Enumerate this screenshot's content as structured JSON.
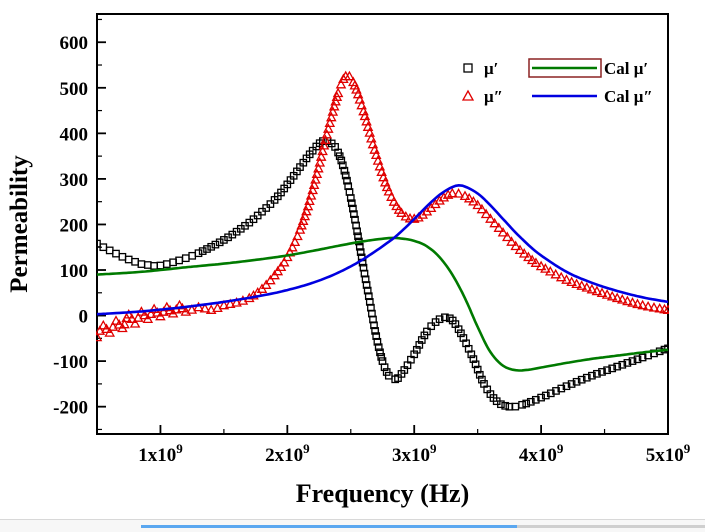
{
  "chart_data": {
    "type": "line+scatter",
    "title": "",
    "xlabel": "Frequency (Hz)",
    "ylabel": "Permeability",
    "xlim": [
      0.5,
      5.0
    ],
    "ylim": [
      -260,
      662
    ],
    "x_unit": "GHz (labels shown as n x 10^9 Hz)",
    "grid": false,
    "legend_position": "top-right-inside",
    "x_ticks": [
      {
        "v": 1,
        "label": "1x10",
        "sup": "9"
      },
      {
        "v": 2,
        "label": "2x10",
        "sup": "9"
      },
      {
        "v": 3,
        "label": "3x10",
        "sup": "9"
      },
      {
        "v": 4,
        "label": "4x10",
        "sup": "9"
      },
      {
        "v": 5,
        "label": "5x10",
        "sup": "9"
      }
    ],
    "x_minor": [
      0.5,
      1.5,
      2.5,
      3.5,
      4.5
    ],
    "y_ticks": [
      -200,
      -100,
      0,
      100,
      200,
      300,
      400,
      500,
      600
    ],
    "y_minor": [
      -250,
      -150,
      -50,
      50,
      150,
      250,
      350,
      450,
      550,
      650
    ],
    "series": [
      {
        "name": "mu-prime-measured",
        "legend": "μ′",
        "kind": "scatter",
        "marker": "square",
        "color": "#000000",
        "points": [
          [
            0.5,
            158
          ],
          [
            0.55,
            150
          ],
          [
            0.6,
            143
          ],
          [
            0.65,
            136
          ],
          [
            0.7,
            129
          ],
          [
            0.75,
            123
          ],
          [
            0.8,
            118
          ],
          [
            0.85,
            113
          ],
          [
            0.9,
            111
          ],
          [
            0.95,
            109
          ],
          [
            1.0,
            110
          ],
          [
            1.05,
            113
          ],
          [
            1.1,
            117
          ],
          [
            1.2,
            126
          ],
          [
            1.3,
            137
          ],
          [
            1.4,
            151
          ],
          [
            1.5,
            166
          ],
          [
            1.6,
            184
          ],
          [
            1.7,
            204
          ],
          [
            1.8,
            228
          ],
          [
            1.9,
            254
          ],
          [
            2.0,
            288
          ],
          [
            2.1,
            326
          ],
          [
            2.2,
            362
          ],
          [
            2.28,
            383
          ],
          [
            2.35,
            378
          ],
          [
            2.4,
            358
          ],
          [
            2.45,
            318
          ],
          [
            2.5,
            258
          ],
          [
            2.55,
            185
          ],
          [
            2.6,
            105
          ],
          [
            2.65,
            30
          ],
          [
            2.7,
            -45
          ],
          [
            2.75,
            -100
          ],
          [
            2.8,
            -132
          ],
          [
            2.85,
            -140
          ],
          [
            2.9,
            -128
          ],
          [
            3.0,
            -85
          ],
          [
            3.1,
            -35
          ],
          [
            3.2,
            -8
          ],
          [
            3.28,
            -6
          ],
          [
            3.35,
            -30
          ],
          [
            3.45,
            -85
          ],
          [
            3.55,
            -150
          ],
          [
            3.65,
            -188
          ],
          [
            3.75,
            -200
          ],
          [
            3.85,
            -196
          ],
          [
            4.0,
            -180
          ],
          [
            4.2,
            -155
          ],
          [
            4.4,
            -132
          ],
          [
            4.6,
            -112
          ],
          [
            4.8,
            -92
          ],
          [
            5.0,
            -72
          ]
        ]
      },
      {
        "name": "mu-doubleprime-measured",
        "legend": "μ″",
        "kind": "scatter",
        "marker": "triangle",
        "color": "#e00000",
        "points": [
          [
            0.5,
            -48
          ],
          [
            0.55,
            -22
          ],
          [
            0.6,
            -38
          ],
          [
            0.65,
            -12
          ],
          [
            0.7,
            -28
          ],
          [
            0.75,
            2
          ],
          [
            0.8,
            -18
          ],
          [
            0.85,
            8
          ],
          [
            0.9,
            -8
          ],
          [
            0.95,
            14
          ],
          [
            1.0,
            -2
          ],
          [
            1.05,
            18
          ],
          [
            1.1,
            4
          ],
          [
            1.15,
            22
          ],
          [
            1.2,
            8
          ],
          [
            1.3,
            18
          ],
          [
            1.4,
            12
          ],
          [
            1.5,
            22
          ],
          [
            1.6,
            28
          ],
          [
            1.7,
            38
          ],
          [
            1.8,
            58
          ],
          [
            1.9,
            88
          ],
          [
            2.0,
            128
          ],
          [
            2.1,
            188
          ],
          [
            2.2,
            275
          ],
          [
            2.3,
            385
          ],
          [
            2.4,
            488
          ],
          [
            2.46,
            525
          ],
          [
            2.52,
            512
          ],
          [
            2.6,
            448
          ],
          [
            2.7,
            352
          ],
          [
            2.8,
            272
          ],
          [
            2.9,
            225
          ],
          [
            3.0,
            212
          ],
          [
            3.1,
            228
          ],
          [
            3.2,
            252
          ],
          [
            3.3,
            268
          ],
          [
            3.4,
            262
          ],
          [
            3.5,
            242
          ],
          [
            3.6,
            212
          ],
          [
            3.7,
            182
          ],
          [
            3.8,
            152
          ],
          [
            3.9,
            128
          ],
          [
            4.0,
            108
          ],
          [
            4.2,
            78
          ],
          [
            4.4,
            57
          ],
          [
            4.6,
            38
          ],
          [
            4.8,
            22
          ],
          [
            5.0,
            12
          ]
        ]
      },
      {
        "name": "cal-mu-prime",
        "legend": "Cal μ′",
        "kind": "line",
        "color": "#007a00",
        "legend_box": true,
        "legend_box_color": "#8b2222",
        "points": [
          [
            0.5,
            90
          ],
          [
            0.8,
            95
          ],
          [
            1.0,
            100
          ],
          [
            1.2,
            106
          ],
          [
            1.5,
            114
          ],
          [
            1.8,
            124
          ],
          [
            2.0,
            132
          ],
          [
            2.2,
            142
          ],
          [
            2.4,
            153
          ],
          [
            2.6,
            163
          ],
          [
            2.8,
            170
          ],
          [
            2.9,
            169
          ],
          [
            3.0,
            164
          ],
          [
            3.1,
            152
          ],
          [
            3.2,
            128
          ],
          [
            3.3,
            90
          ],
          [
            3.4,
            38
          ],
          [
            3.5,
            -25
          ],
          [
            3.6,
            -80
          ],
          [
            3.7,
            -110
          ],
          [
            3.8,
            -120
          ],
          [
            3.9,
            -119
          ],
          [
            4.0,
            -114
          ],
          [
            4.2,
            -104
          ],
          [
            4.4,
            -95
          ],
          [
            4.6,
            -88
          ],
          [
            4.8,
            -81
          ],
          [
            5.0,
            -75
          ]
        ]
      },
      {
        "name": "cal-mu-doubleprime",
        "legend": "Cal μ″",
        "kind": "line",
        "color": "#0000e0",
        "legend_box": false,
        "points": [
          [
            0.5,
            3
          ],
          [
            0.8,
            8
          ],
          [
            1.0,
            13
          ],
          [
            1.2,
            19
          ],
          [
            1.5,
            30
          ],
          [
            1.8,
            44
          ],
          [
            2.0,
            56
          ],
          [
            2.2,
            72
          ],
          [
            2.4,
            94
          ],
          [
            2.6,
            124
          ],
          [
            2.8,
            162
          ],
          [
            2.9,
            185
          ],
          [
            3.0,
            212
          ],
          [
            3.1,
            240
          ],
          [
            3.2,
            265
          ],
          [
            3.3,
            282
          ],
          [
            3.38,
            285
          ],
          [
            3.5,
            268
          ],
          [
            3.6,
            242
          ],
          [
            3.7,
            212
          ],
          [
            3.8,
            182
          ],
          [
            3.9,
            155
          ],
          [
            4.0,
            132
          ],
          [
            4.2,
            96
          ],
          [
            4.4,
            72
          ],
          [
            4.6,
            54
          ],
          [
            4.8,
            40
          ],
          [
            5.0,
            30
          ]
        ]
      }
    ],
    "axis_color": "#000000"
  },
  "ui": {
    "background": "#ffffff",
    "bottom_bar_blue_color": "#5aa7f0"
  }
}
